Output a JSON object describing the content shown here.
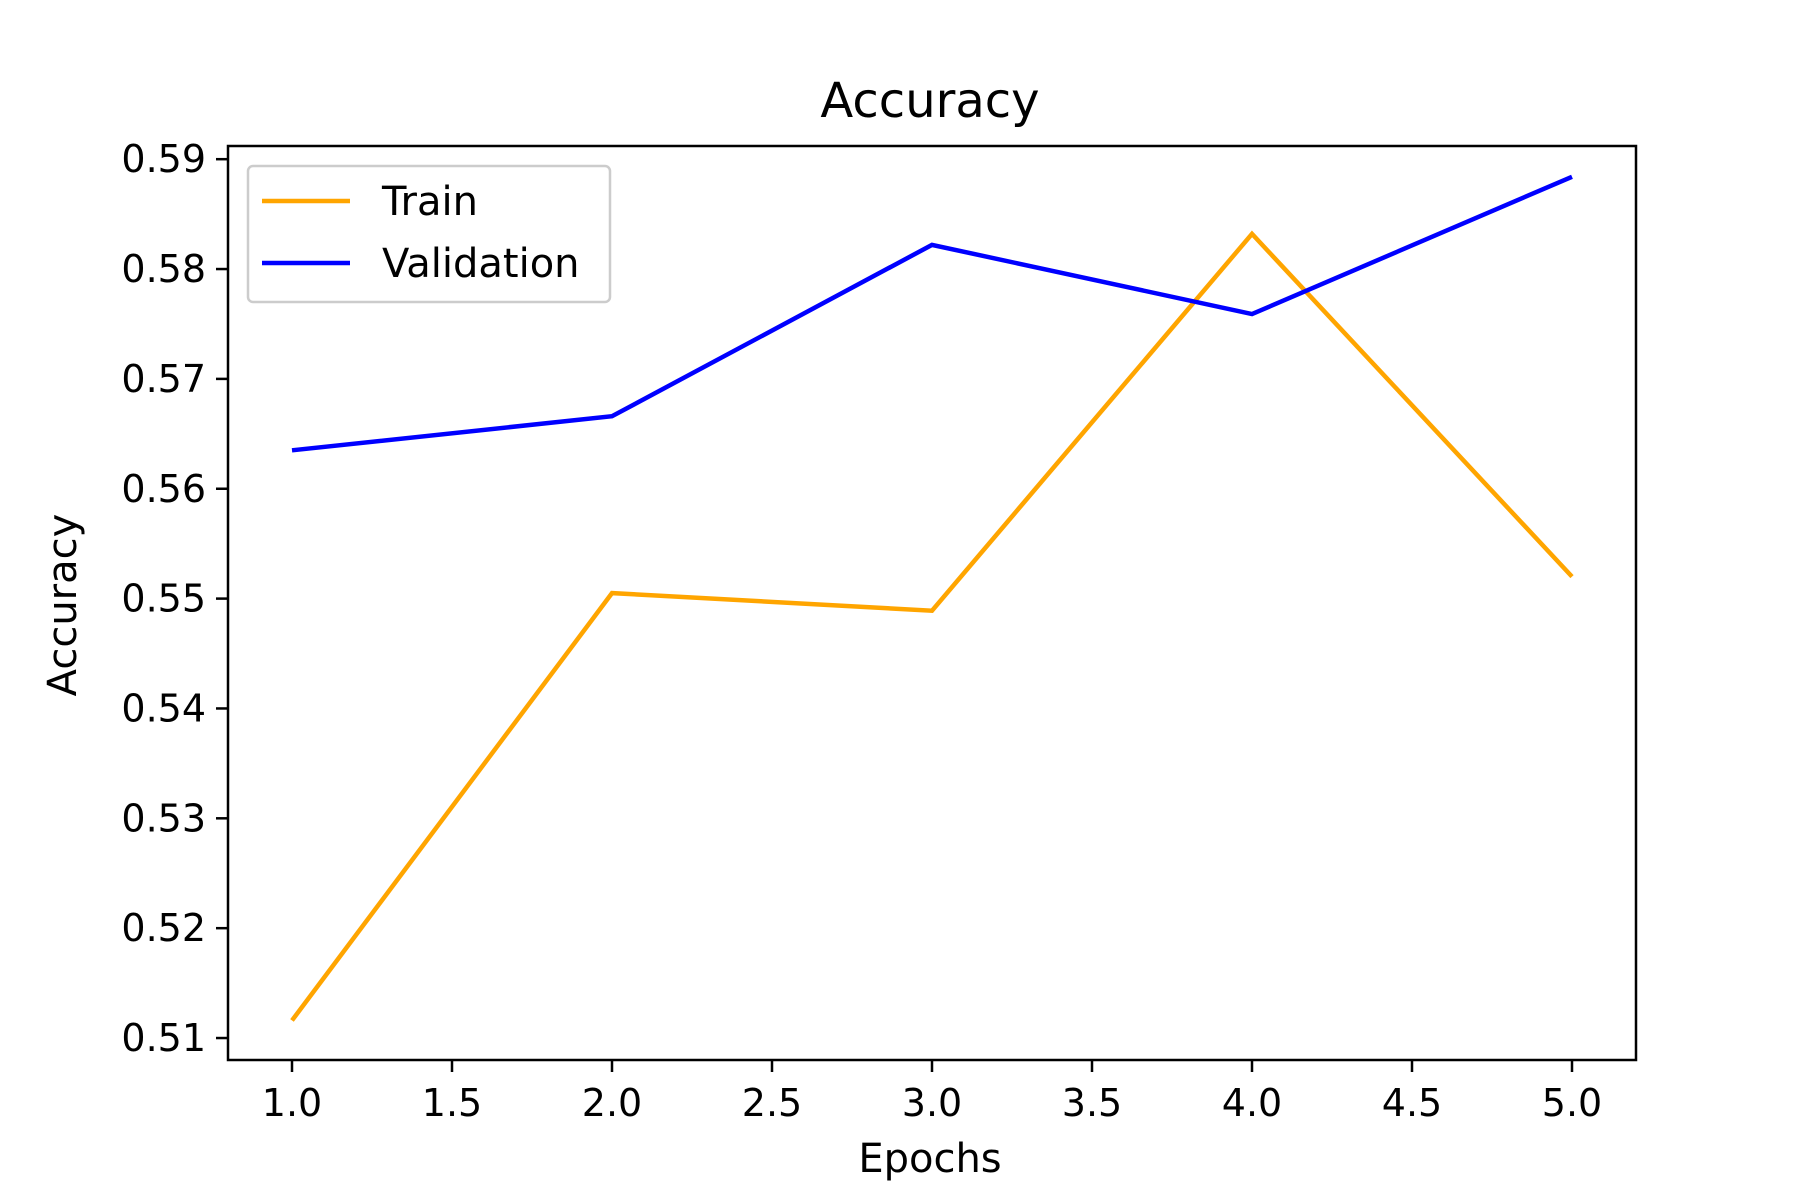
{
  "chart_data": {
    "type": "line",
    "title": "Accuracy",
    "xlabel": "Epochs",
    "ylabel": "Accuracy",
    "x": [
      1.0,
      2.0,
      3.0,
      4.0,
      5.0
    ],
    "series": [
      {
        "name": "Train",
        "color": "#ffa500",
        "values": [
          0.5116,
          0.5505,
          0.5489,
          0.5832,
          0.552
        ]
      },
      {
        "name": "Validation",
        "color": "#0000ff",
        "values": [
          0.5635,
          0.5666,
          0.5822,
          0.5759,
          0.5884
        ]
      }
    ],
    "xlim": [
      0.8,
      5.2
    ],
    "ylim": [
      0.508,
      0.5912
    ],
    "x_ticks": [
      "1.0",
      "1.5",
      "2.0",
      "2.5",
      "3.0",
      "3.5",
      "4.0",
      "4.5",
      "5.0"
    ],
    "y_ticks": [
      "0.51",
      "0.52",
      "0.53",
      "0.54",
      "0.55",
      "0.56",
      "0.57",
      "0.58",
      "0.59"
    ],
    "grid": false,
    "legend_position": "top-left"
  }
}
